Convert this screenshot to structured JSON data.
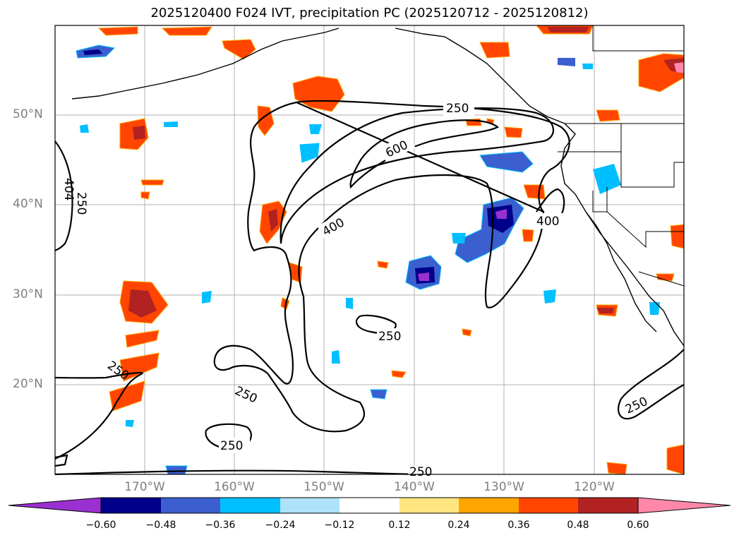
{
  "title": "2025120400 F024 IVT, precipitation PC (2025120712 - 2025120812)",
  "map": {
    "lat_labels": [
      "50°N",
      "40°N",
      "30°N",
      "20°N"
    ],
    "lon_labels": [
      "170°W",
      "160°W",
      "150°W",
      "140°W",
      "130°W",
      "120°W"
    ],
    "ivt_contour_labels": [
      "250",
      "600",
      "400",
      "400",
      "250",
      "404",
      "250",
      "250",
      "250",
      "250",
      "250",
      "250"
    ]
  },
  "colorbar": {
    "ticks": [
      "−0.60",
      "−0.48",
      "−0.36",
      "−0.24",
      "−0.12",
      "0.12",
      "0.24",
      "0.36",
      "0.48",
      "0.60"
    ],
    "colors": [
      "#9b30d0",
      "#00008b",
      "#3b5fcf",
      "#00bfff",
      "#ade2fa",
      "#ffffff",
      "#ffe680",
      "#ffa500",
      "#ff4500",
      "#b22222",
      "#ff88aa"
    ]
  }
}
